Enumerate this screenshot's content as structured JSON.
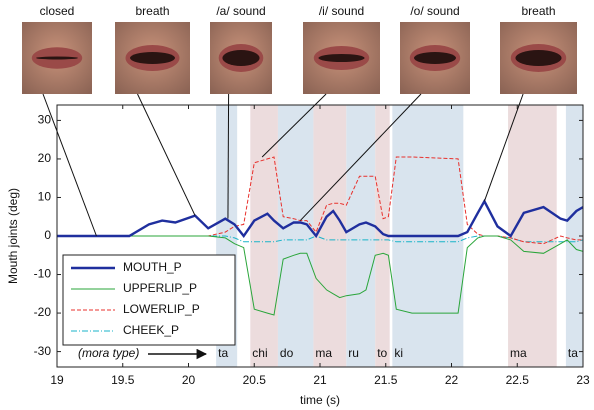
{
  "chart_data": {
    "type": "line",
    "xlabel": "time (s)",
    "ylabel": "Mouth joints (deg)",
    "xlim": [
      19,
      23
    ],
    "ylim": [
      -34,
      34
    ],
    "xticks": [
      19,
      19.5,
      20,
      20.5,
      21,
      21.5,
      22,
      22.5,
      23
    ],
    "yticks": [
      -30,
      -20,
      -10,
      0,
      10,
      20,
      30
    ],
    "legend": "lower left",
    "x": [
      19,
      19.55,
      19.7,
      19.8,
      19.9,
      20.05,
      20.15,
      20.28,
      20.35,
      20.42,
      20.5,
      20.6,
      20.65,
      20.72,
      20.8,
      20.85,
      20.9,
      20.97,
      21.05,
      21.1,
      21.15,
      21.2,
      21.3,
      21.35,
      21.42,
      21.48,
      21.52,
      21.58,
      21.7,
      22.05,
      22.12,
      22.2,
      22.25,
      22.35,
      22.45,
      22.55,
      22.7,
      22.83,
      22.88,
      22.95,
      23
    ],
    "series": [
      {
        "name": "MOUTH_P",
        "color": "#1f2f9e",
        "line_style": "solid",
        "values": [
          0,
          0,
          3,
          4,
          3.5,
          5.3,
          2,
          4.5,
          3,
          0,
          4,
          5.8,
          4,
          2,
          3.5,
          3.5,
          3,
          0,
          5,
          6.5,
          4,
          1,
          3,
          3.5,
          2.5,
          0.5,
          0,
          0,
          0,
          0,
          1,
          6,
          9,
          2.5,
          0,
          6,
          7.5,
          4.5,
          4,
          6.5,
          7.5
        ]
      },
      {
        "name": "UPPERLIP_P",
        "color": "#2aa53a",
        "line_style": "solid",
        "values": [
          0,
          0,
          0,
          0,
          0,
          0,
          0,
          -0.5,
          -2,
          -3,
          -19,
          -20,
          -20.5,
          -6,
          -5,
          -4.5,
          -4.5,
          -11,
          -14,
          -15,
          -16,
          -15.5,
          -15,
          -14,
          -5,
          -4.5,
          -5,
          -19,
          -20,
          -20,
          -3,
          -0.5,
          0,
          0,
          -1,
          -4,
          -4.5,
          -2,
          -1,
          -3.5,
          -4
        ]
      },
      {
        "name": "LOWERLIP_P",
        "color": "#e8302c",
        "line_style": "dashed",
        "values": [
          0,
          0,
          0,
          0,
          0,
          0,
          0,
          1,
          2.5,
          3,
          19,
          20,
          20.5,
          5,
          4.5,
          4,
          4,
          1,
          8,
          8.5,
          8.5,
          8,
          15.5,
          15.5,
          15.5,
          4.5,
          5,
          20.5,
          20.5,
          20,
          3,
          0.5,
          0,
          0,
          -0.5,
          -1.5,
          -2,
          0,
          -0.5,
          -1,
          -1
        ]
      },
      {
        "name": "CHEEK_P",
        "color": "#19b3c8",
        "line_style": "dashdot",
        "values": [
          0,
          0,
          0,
          0,
          0,
          0,
          0,
          0,
          -0.5,
          -1.5,
          -1.5,
          -1.5,
          -1.5,
          -1,
          -1,
          -1,
          -1,
          0,
          -1,
          -1,
          -1,
          -1,
          -1,
          -1,
          -1,
          -1,
          -1,
          -1.5,
          -1.5,
          -1.5,
          -0.5,
          0,
          0,
          0,
          -0.5,
          -1.5,
          -1.5,
          -1.5,
          -1.5,
          -1.5,
          -1
        ]
      }
    ],
    "mora_caption": "(mora type)",
    "mora": [
      {
        "label": "ta",
        "start": 20.21,
        "end": 20.37,
        "color": "#d9e4ee"
      },
      {
        "label": "chi",
        "start": 20.47,
        "end": 20.68,
        "color": "#ecdcdd"
      },
      {
        "label": "do",
        "start": 20.68,
        "end": 20.95,
        "color": "#d9e4ee"
      },
      {
        "label": "ma",
        "start": 20.95,
        "end": 21.2,
        "color": "#ecdcdd"
      },
      {
        "label": "ru",
        "start": 21.2,
        "end": 21.42,
        "color": "#d9e4ee"
      },
      {
        "label": "to",
        "start": 21.42,
        "end": 21.53,
        "color": "#ecdcdd"
      },
      {
        "label": "ki",
        "start": 21.55,
        "end": 22.09,
        "color": "#d9e4ee"
      },
      {
        "label": "ma",
        "start": 22.43,
        "end": 22.8,
        "color": "#ecdcdd"
      },
      {
        "label": "ta",
        "start": 22.87,
        "end": 23,
        "color": "#d9e4ee"
      }
    ],
    "annotations": [
      {
        "text": "closed",
        "x": 19.3,
        "y": 0
      },
      {
        "text": "breath",
        "x": 20.05,
        "y": 5.3
      },
      {
        "text": "/a/ sound",
        "x": 20.3,
        "y": 4.5
      },
      {
        "text": "/i/ sound",
        "x": 20.56,
        "y": 20.5
      },
      {
        "text": "/o/ sound",
        "x": 20.85,
        "y": 4
      },
      {
        "text": "breath",
        "x": 22.25,
        "y": 9
      }
    ]
  }
}
